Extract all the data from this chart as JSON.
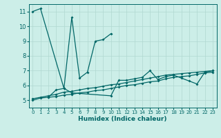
{
  "xlabel": "Humidex (Indice chaleur)",
  "background_color": "#cceee8",
  "grid_color": "#b0d8d0",
  "line_color": "#006666",
  "xlim": [
    -0.5,
    23.5
  ],
  "ylim": [
    4.5,
    11.5
  ],
  "xticks": [
    0,
    1,
    2,
    3,
    4,
    5,
    6,
    7,
    8,
    9,
    10,
    11,
    12,
    13,
    14,
    15,
    16,
    17,
    18,
    19,
    20,
    21,
    22,
    23
  ],
  "yticks": [
    5,
    6,
    7,
    8,
    9,
    10,
    11
  ],
  "series1_x": [
    0,
    1,
    4,
    5,
    6,
    7,
    8,
    9,
    10
  ],
  "series1_y": [
    11.0,
    11.2,
    5.8,
    10.6,
    6.5,
    6.9,
    9.0,
    9.1,
    9.5
  ],
  "series2_x": [
    2,
    3,
    4,
    5,
    10,
    11,
    12,
    13,
    14,
    15,
    16,
    17,
    18,
    19,
    20,
    21,
    22,
    23
  ],
  "series2_y": [
    5.2,
    5.7,
    5.8,
    5.5,
    5.3,
    6.35,
    6.35,
    6.45,
    6.55,
    7.0,
    6.4,
    6.6,
    6.7,
    6.5,
    6.3,
    6.1,
    6.9,
    7.0
  ],
  "series3_x": [
    0,
    1,
    2,
    3,
    4,
    5,
    6,
    7,
    8,
    9,
    10,
    11,
    12,
    13,
    14,
    15,
    16,
    17,
    18,
    19,
    20,
    21,
    22,
    23
  ],
  "series3_y": [
    5.0,
    5.15,
    5.2,
    5.25,
    5.35,
    5.4,
    5.5,
    5.55,
    5.65,
    5.7,
    5.8,
    5.9,
    6.0,
    6.05,
    6.15,
    6.25,
    6.3,
    6.45,
    6.55,
    6.6,
    6.65,
    6.75,
    6.85,
    6.9
  ],
  "series4_x": [
    0,
    1,
    2,
    3,
    4,
    5,
    6,
    7,
    8,
    9,
    10,
    11,
    12,
    13,
    14,
    15,
    16,
    17,
    18,
    19,
    20,
    21,
    22,
    23
  ],
  "series4_y": [
    5.1,
    5.2,
    5.3,
    5.4,
    5.55,
    5.6,
    5.7,
    5.8,
    5.85,
    5.95,
    6.05,
    6.1,
    6.2,
    6.3,
    6.4,
    6.5,
    6.6,
    6.7,
    6.75,
    6.8,
    6.85,
    6.9,
    6.95,
    7.0
  ]
}
